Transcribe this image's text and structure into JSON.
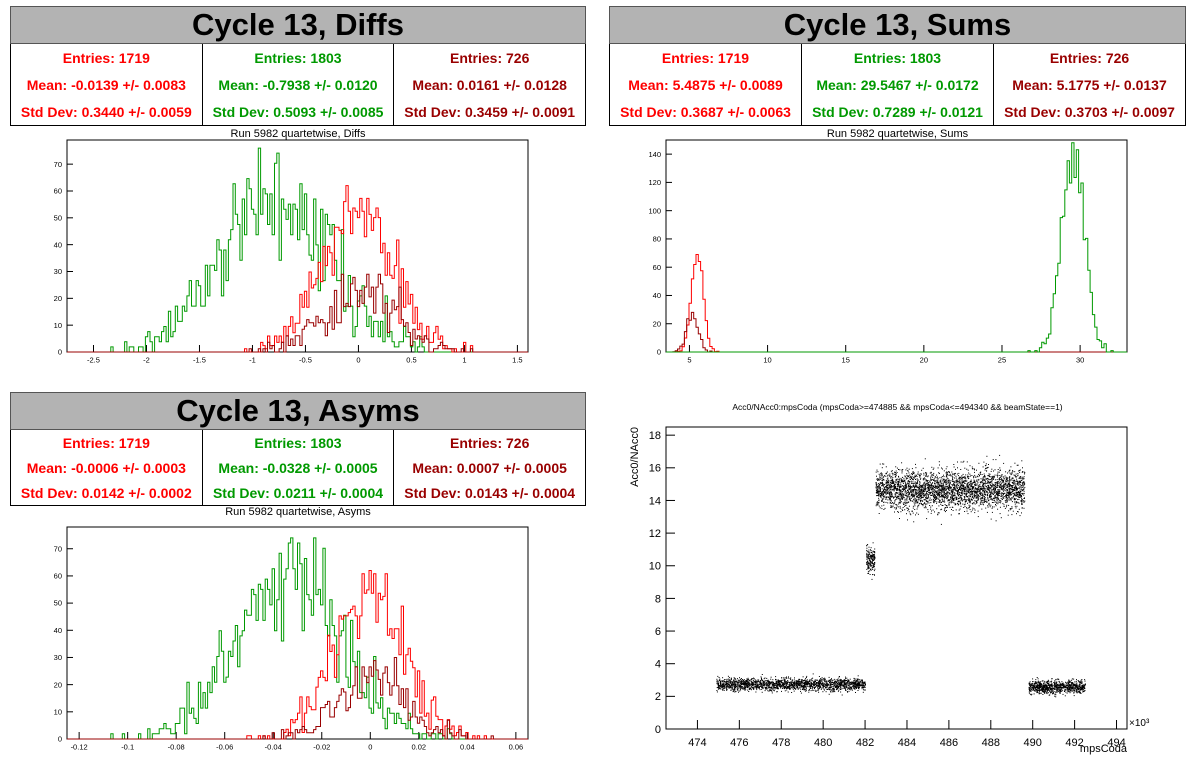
{
  "panels": {
    "diffs": {
      "header": "Cycle 13, Diffs",
      "subtitle": "Run 5982 quartetwise, Diffs",
      "stats": [
        {
          "entries": "Entries: 1719",
          "mean": "Mean: -0.0139 +/- 0.0083",
          "std": "Std Dev: 0.3440 +/- 0.0059"
        },
        {
          "entries": "Entries: 1803",
          "mean": "Mean: -0.7938 +/- 0.0120",
          "std": "Std Dev: 0.5093 +/- 0.0085"
        },
        {
          "entries": "Entries: 726",
          "mean": "Mean: 0.0161 +/- 0.0128",
          "std": "Std Dev: 0.3459 +/- 0.0091"
        }
      ]
    },
    "sums": {
      "header": "Cycle 13, Sums",
      "subtitle": "Run 5982 quartetwise, Sums",
      "stats": [
        {
          "entries": "Entries: 1719",
          "mean": "Mean: 5.4875 +/- 0.0089",
          "std": "Std Dev: 0.3687 +/- 0.0063"
        },
        {
          "entries": "Entries: 1803",
          "mean": "Mean: 29.5467 +/- 0.0172",
          "std": "Std Dev: 0.7289 +/- 0.0121"
        },
        {
          "entries": "Entries: 726",
          "mean": "Mean: 5.1775 +/- 0.0137",
          "std": "Std Dev: 0.3703 +/- 0.0097"
        }
      ]
    },
    "asyms": {
      "header": "Cycle 13, Asyms",
      "subtitle": "Run 5982 quartetwise, Asyms",
      "stats": [
        {
          "entries": "Entries: 1719",
          "mean": "Mean: -0.0006 +/- 0.0003",
          "std": "Std Dev: 0.0142 +/- 0.0002"
        },
        {
          "entries": "Entries: 1803",
          "mean": "Mean: -0.0328 +/- 0.0005",
          "std": "Std Dev: 0.0211 +/- 0.0004"
        },
        {
          "entries": "Entries: 726",
          "mean": "Mean: 0.0007 +/- 0.0005",
          "std": "Std Dev: 0.0143 +/- 0.0004"
        }
      ]
    },
    "scatter": {
      "title": "Acc0/NAcc0:mpsCoda (mpsCoda>=474885 && mpsCoda<=494340 && beamState==1)"
    }
  },
  "colors": {
    "red": "#ff0000",
    "green": "#009900",
    "darkred": "#990000"
  },
  "chart_data": [
    {
      "type": "histogram",
      "name": "diffs",
      "xlim": [
        -2.75,
        1.6
      ],
      "ylim": [
        0,
        79
      ],
      "xticks": [
        -2.5,
        -2,
        -1.5,
        -1,
        -0.5,
        0,
        0.5,
        1,
        1.5
      ],
      "yticks": [
        0,
        10,
        20,
        30,
        40,
        50,
        60,
        70
      ],
      "series": [
        {
          "color": "green",
          "entries": 1803,
          "mean": -0.7938,
          "std": 0.5093,
          "peak": 76
        },
        {
          "color": "red",
          "entries": 1719,
          "mean": -0.0139,
          "std": 0.344,
          "peak": 62
        },
        {
          "color": "darkred",
          "entries": 726,
          "mean": 0.0161,
          "std": 0.3459,
          "peak": 29
        }
      ]
    },
    {
      "type": "histogram",
      "name": "sums",
      "xlim": [
        3.5,
        33
      ],
      "ylim": [
        0,
        150
      ],
      "xticks": [
        5,
        10,
        15,
        20,
        25,
        30
      ],
      "yticks": [
        0,
        20,
        40,
        60,
        80,
        100,
        120,
        140
      ],
      "series": [
        {
          "color": "red",
          "entries": 1719,
          "mean": 5.4875,
          "std": 0.3687,
          "peak": 69
        },
        {
          "color": "darkred",
          "entries": 726,
          "mean": 5.1775,
          "std": 0.3703,
          "peak": 28
        },
        {
          "color": "green",
          "entries": 1803,
          "mean": 29.5467,
          "std": 0.7289,
          "peak": 148
        }
      ]
    },
    {
      "type": "histogram",
      "name": "asyms",
      "xlim": [
        -0.125,
        0.065
      ],
      "ylim": [
        0,
        78
      ],
      "xticks": [
        -0.12,
        -0.1,
        -0.08,
        -0.06,
        -0.04,
        -0.02,
        0,
        0.02,
        0.04,
        0.06
      ],
      "yticks": [
        0,
        10,
        20,
        30,
        40,
        50,
        60,
        70
      ],
      "series": [
        {
          "color": "green",
          "entries": 1803,
          "mean": -0.0328,
          "std": 0.0211,
          "peak": 74
        },
        {
          "color": "red",
          "entries": 1719,
          "mean": -0.0006,
          "std": 0.0142,
          "peak": 62
        },
        {
          "color": "darkred",
          "entries": 726,
          "mean": 0.0007,
          "std": 0.0143,
          "peak": 30
        }
      ]
    },
    {
      "type": "scatter",
      "name": "acc0-vs-mpscoda",
      "xlabel": "mpsCoda",
      "ylabel": "Acc0/NAcc0",
      "xmultiplier": "×10³",
      "xlim": [
        472.5,
        494.5
      ],
      "ylim": [
        0,
        18.5
      ],
      "xticks": [
        474,
        476,
        478,
        480,
        482,
        484,
        486,
        488,
        490,
        492,
        494
      ],
      "yticks": [
        0,
        2,
        4,
        6,
        8,
        10,
        12,
        14,
        16,
        18
      ],
      "clusters": [
        {
          "x": [
            474.9,
            482.0
          ],
          "y_center": 2.75,
          "y_spread": 0.55
        },
        {
          "x": [
            482.05,
            482.45
          ],
          "y_center": 10.4,
          "y_spread": 1.2
        },
        {
          "x": [
            482.5,
            489.6
          ],
          "y_center": 14.7,
          "y_spread": 1.7
        },
        {
          "x": [
            489.8,
            492.5
          ],
          "y_center": 2.6,
          "y_spread": 0.55
        }
      ]
    }
  ]
}
